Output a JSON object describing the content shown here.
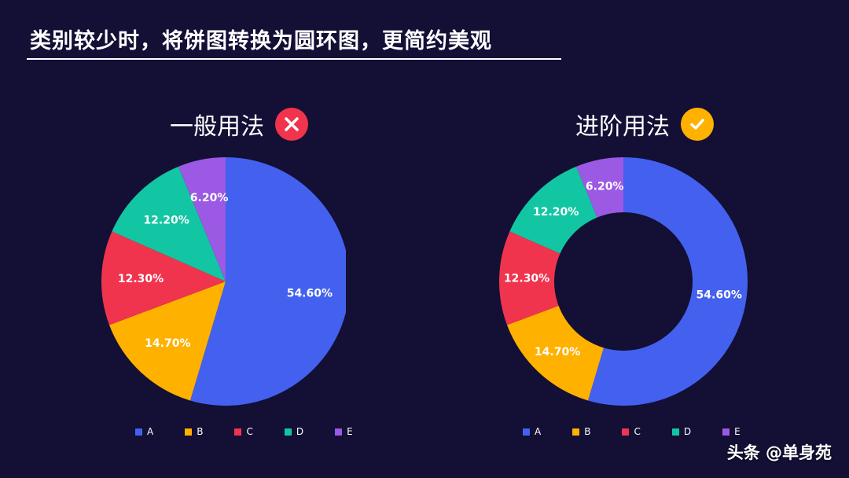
{
  "page_title": "类别较少时，将饼图转换为圆环图，更简约美观",
  "watermark": "头条 @单身苑",
  "colors": {
    "background": "#130f35",
    "A": "#4361ee",
    "B": "#ffb100",
    "C": "#f0344d",
    "D": "#12c6a3",
    "E": "#9b59e4",
    "bad_badge": "#f0344d",
    "good_badge": "#ffb100"
  },
  "chart_data": [
    {
      "type": "pie",
      "title": "一般用法",
      "badge_icon": "cross-icon",
      "categories": [
        "A",
        "B",
        "C",
        "D",
        "E"
      ],
      "values": [
        54.6,
        14.7,
        12.3,
        12.2,
        6.2
      ],
      "labels": [
        "54.60%",
        "14.70%",
        "12.30%",
        "12.20%",
        "6.20%"
      ],
      "legend": "bottom"
    },
    {
      "type": "pie",
      "subtype": "donut",
      "title": "进阶用法",
      "badge_icon": "check-icon",
      "categories": [
        "A",
        "B",
        "C",
        "D",
        "E"
      ],
      "values": [
        54.6,
        14.7,
        12.3,
        12.2,
        6.2
      ],
      "labels": [
        "54.60%",
        "14.70%",
        "12.30%",
        "12.20%",
        "6.20%"
      ],
      "legend": "bottom"
    }
  ]
}
